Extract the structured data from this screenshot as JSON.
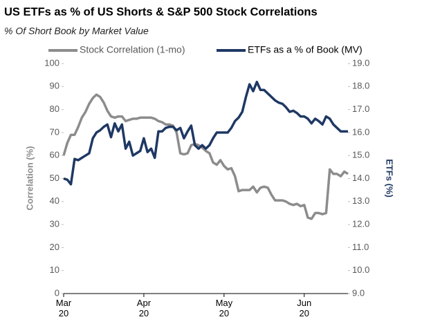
{
  "chart_data": {
    "type": "line",
    "title": "US ETFs as % of US Shorts & S&P 500 Stock Correlations",
    "subtitle": "% Of Short Book by Market Value",
    "y_label": "Correlation (%)",
    "y2_label": "ETFs (%)",
    "categories": [
      "Mar\n20",
      null,
      null,
      null,
      null,
      null,
      null,
      null,
      null,
      null,
      null,
      null,
      null,
      null,
      null,
      null,
      null,
      null,
      null,
      null,
      null,
      null,
      "Apr\n20",
      null,
      null,
      null,
      null,
      null,
      null,
      null,
      null,
      null,
      null,
      null,
      null,
      null,
      null,
      null,
      null,
      null,
      null,
      null,
      null,
      null,
      "May\n20",
      null,
      null,
      null,
      null,
      null,
      null,
      null,
      null,
      null,
      null,
      null,
      null,
      null,
      null,
      null,
      null,
      null,
      null,
      null,
      null,
      null,
      "Jun\n20",
      null,
      null,
      null,
      null,
      null,
      null,
      null,
      null,
      null,
      null,
      null,
      null
    ],
    "series": [
      {
        "name": "Stock Correlation (1-mo)",
        "color": "#8c8c8c",
        "axis": "y",
        "values": [
          60,
          65.5,
          69,
          69,
          72.5,
          76.5,
          79,
          82.5,
          85,
          86.5,
          85.5,
          83,
          79.5,
          77,
          76.5,
          77,
          77,
          75,
          75.5,
          76,
          76,
          76.5,
          76.5,
          76.5,
          76.5,
          76,
          75,
          74.5,
          73.5,
          73.5,
          73,
          70,
          61,
          60.5,
          61,
          64.5,
          65,
          64.5,
          63.5,
          62,
          61,
          57,
          56,
          58,
          55.5,
          54,
          54.5,
          51,
          44.5,
          45,
          45,
          45,
          46.5,
          44,
          46,
          46.5,
          46,
          43,
          40.5,
          40.5,
          40.5,
          40,
          39,
          38.5,
          39,
          38,
          38.5,
          33,
          32.5,
          35,
          35,
          34.5,
          35,
          54,
          52,
          52,
          51,
          53,
          52
        ]
      },
      {
        "name": "ETFs as a % of Book (MV)",
        "color": "#1f3864",
        "axis": "y2",
        "values": [
          14.0,
          13.95,
          13.75,
          14.85,
          14.8,
          14.9,
          15.0,
          15.1,
          15.75,
          16.0,
          16.1,
          16.25,
          16.35,
          15.8,
          16.4,
          16.05,
          16.35,
          15.3,
          15.6,
          15.0,
          15.1,
          15.2,
          15.75,
          15.15,
          15.3,
          14.9,
          16.05,
          16.05,
          16.2,
          16.25,
          16.25,
          16.1,
          16.2,
          15.75,
          16.05,
          16.3,
          15.45,
          15.3,
          15.45,
          15.3,
          15.45,
          15.75,
          16.0,
          16.0,
          16.0,
          16.0,
          16.2,
          16.5,
          16.65,
          16.9,
          17.55,
          18.1,
          17.8,
          18.2,
          17.85,
          17.85,
          17.7,
          17.55,
          17.4,
          17.3,
          17.25,
          17.1,
          16.9,
          16.95,
          16.85,
          16.7,
          16.7,
          16.6,
          16.4,
          16.6,
          16.5,
          16.35,
          16.7,
          16.6,
          16.35,
          16.2,
          16.05,
          16.05,
          16.05
        ]
      }
    ],
    "ylim": [
      0,
      100
    ],
    "yticks": [
      0,
      10,
      20,
      30,
      40,
      50,
      60,
      70,
      80,
      90,
      100
    ],
    "y2lim": [
      9,
      19
    ],
    "y2ticks": [
      {
        "value": 9,
        "label": "9.0"
      },
      {
        "value": 10,
        "label": "10.0"
      },
      {
        "value": 11,
        "label": "11.0"
      },
      {
        "value": 12,
        "label": "12.0"
      },
      {
        "value": 13,
        "label": "13.0"
      },
      {
        "value": 14,
        "label": "14.0"
      },
      {
        "value": 15,
        "label": "15.0"
      },
      {
        "value": 16,
        "label": "16.0"
      },
      {
        "value": 17,
        "label": "17.0"
      },
      {
        "value": 18,
        "label": "18.0"
      },
      {
        "value": 19,
        "label": "19.0"
      }
    ]
  }
}
